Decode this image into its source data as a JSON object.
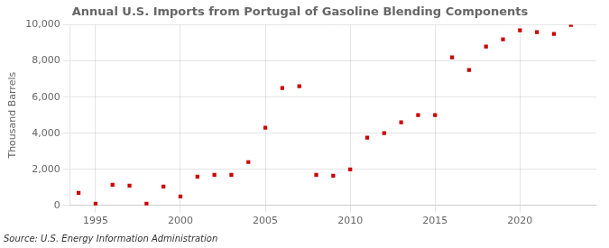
{
  "chart_data": {
    "type": "scatter",
    "title": "Annual U.S. Imports from Portugal of Gasoline Blending Components",
    "ylabel": "Thousand Barrels",
    "annotations": [
      "Source: U.S. Energy Information Administration"
    ],
    "x": [
      1994,
      1995,
      1996,
      1997,
      1998,
      1999,
      2000,
      2001,
      2002,
      2003,
      2004,
      2005,
      2006,
      2007,
      2008,
      2009,
      2010,
      2011,
      2012,
      2013,
      2014,
      2015,
      2016,
      2017,
      2018,
      2019,
      2020,
      2021,
      2022,
      2023
    ],
    "values": [
      700,
      100,
      1150,
      1100,
      100,
      1050,
      500,
      1600,
      1700,
      1700,
      2400,
      4300,
      6500,
      6600,
      1700,
      1650,
      2000,
      3750,
      4000,
      4600,
      5000,
      5000,
      8200,
      7500,
      8800,
      9200,
      9700,
      9600,
      9500,
      10000
    ],
    "color": "#cc0000",
    "marker": "square",
    "xlim": [
      1993.5,
      2024.5
    ],
    "ylim": [
      0,
      10000
    ],
    "xticks": [
      1995,
      2000,
      2005,
      2010,
      2015,
      2020
    ],
    "yticks": [
      0,
      {
        "value": 2000,
        "label": "2,000"
      },
      {
        "value": 4000,
        "label": "4,000"
      },
      {
        "value": 6000,
        "label": "6,000"
      },
      {
        "value": 8000,
        "label": "8,000"
      },
      {
        "value": 10000,
        "label": "10,000"
      }
    ],
    "grid": true
  }
}
